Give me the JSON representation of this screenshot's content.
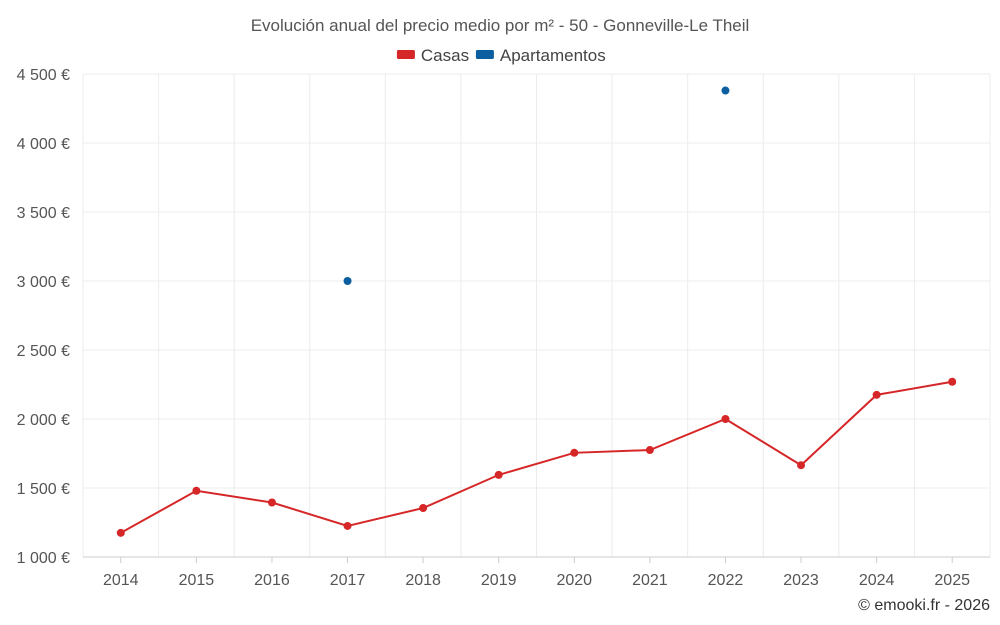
{
  "chart_data": {
    "type": "line",
    "title": "Evolución anual del precio medio por m² - 50 - Gonneville-Le Theil",
    "categories": [
      "2014",
      "2015",
      "2016",
      "2017",
      "2018",
      "2019",
      "2020",
      "2021",
      "2022",
      "2023",
      "2024",
      "2025"
    ],
    "series": [
      {
        "name": "Casas",
        "color": "#d62728",
        "values": [
          1175,
          1480,
          1395,
          1225,
          1355,
          1595,
          1755,
          1775,
          2000,
          1665,
          2175,
          2270
        ]
      },
      {
        "name": "Apartamentos",
        "color": "#0b5fa0",
        "values": [
          null,
          null,
          null,
          3000,
          null,
          null,
          null,
          null,
          4380,
          null,
          null,
          null
        ]
      }
    ],
    "yticks": [
      1000,
      1500,
      2000,
      2500,
      3000,
      3500,
      4000,
      4500
    ],
    "ytick_labels": [
      "1 000 €",
      "1 500 €",
      "2 000 €",
      "2 500 €",
      "3 000 €",
      "3 500 €",
      "4 000 €",
      "4 500 €"
    ],
    "ylim": [
      1000,
      4500
    ],
    "xlabel": "",
    "ylabel": "",
    "grid": true,
    "legend_position": "top-center"
  },
  "credit": "© emooki.fr - 2026"
}
